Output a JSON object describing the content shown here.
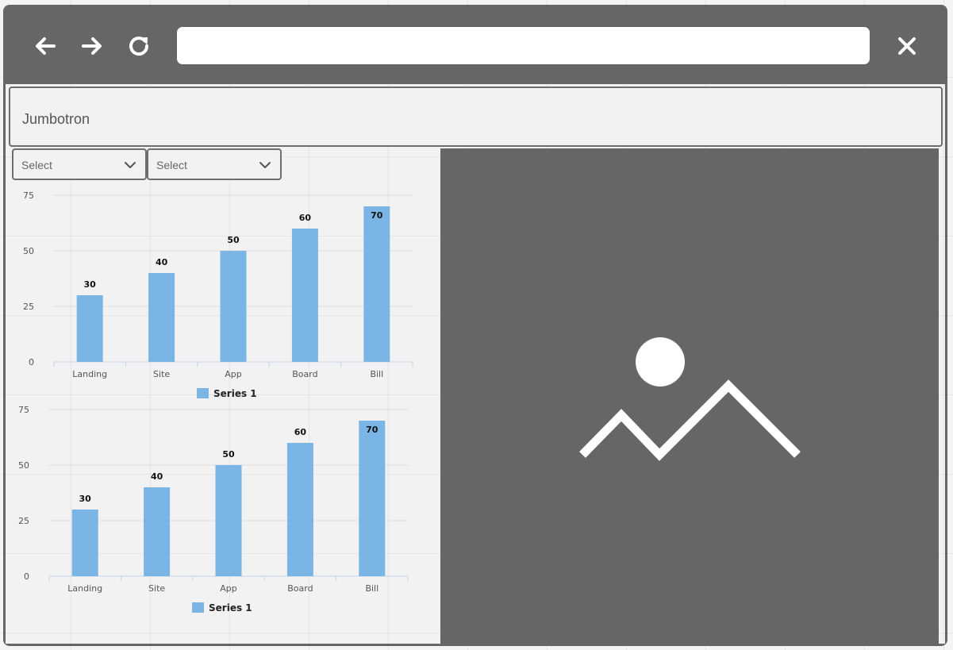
{
  "browser": {
    "back_icon": "arrow-left-icon",
    "forward_icon": "arrow-right-icon",
    "reload_icon": "refresh-icon",
    "close_icon": "close-icon",
    "url_value": "",
    "url_placeholder": ""
  },
  "jumbotron": {
    "title": "Jumbotron"
  },
  "filters": [
    {
      "selected": "Select"
    },
    {
      "selected": "Select"
    }
  ],
  "image": {
    "icon": "image-placeholder-icon"
  },
  "colors": {
    "chrome": "#666666",
    "bar": "#7ab5e6",
    "page_bg": "#f2f2f2"
  },
  "chart_data": [
    {
      "type": "bar",
      "categories": [
        "Landing",
        "Site",
        "App",
        "Board",
        "Bill"
      ],
      "series": [
        {
          "name": "Series 1",
          "values": [
            30,
            40,
            50,
            60,
            70
          ]
        }
      ],
      "ylim": [
        0,
        75
      ],
      "yticks": [
        0,
        25,
        50,
        75
      ],
      "data_labels": true,
      "grid": true,
      "legend": "bottom-center"
    },
    {
      "type": "bar",
      "categories": [
        "Landing",
        "Site",
        "App",
        "Board",
        "Bill"
      ],
      "series": [
        {
          "name": "Series 1",
          "values": [
            30,
            40,
            50,
            60,
            70
          ]
        }
      ],
      "ylim": [
        0,
        75
      ],
      "yticks": [
        0,
        25,
        50,
        75
      ],
      "data_labels": true,
      "grid": true,
      "legend": "bottom-center"
    }
  ]
}
